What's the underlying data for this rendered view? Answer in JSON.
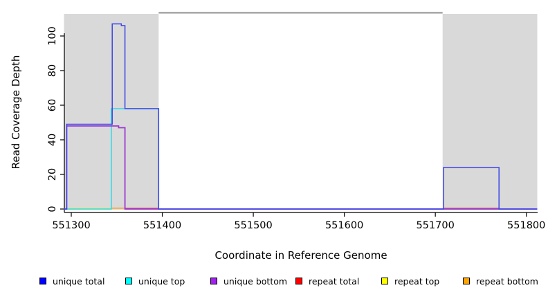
{
  "chart_data": {
    "type": "line",
    "title": "",
    "xlabel": "Coordinate in Reference Genome",
    "ylabel": "Read Coverage Depth",
    "xlim": [
      551292,
      551812
    ],
    "ylim": [
      0,
      113
    ],
    "x_ticks": [
      551300,
      551400,
      551500,
      551600,
      551700,
      551800
    ],
    "y_ticks": [
      0,
      20,
      40,
      60,
      80,
      100
    ],
    "grid": false,
    "legend_position": "bottom",
    "background_color": "#ffffff",
    "shaded_regions": [
      {
        "name": "repeat-region-left",
        "x1": 551292,
        "x2": 551396,
        "color": "#d9d9d9"
      },
      {
        "name": "repeat-region-right",
        "x1": 551708,
        "x2": 551812,
        "color": "#d9d9d9"
      }
    ],
    "top_bar": {
      "x1": 551396,
      "x2": 551708,
      "color": "#919191"
    },
    "series": [
      {
        "name": "repeat top",
        "color": "#f0f00e",
        "segments": [
          [
            [
              551295,
              0.3
            ],
            [
              551344,
              0.3
            ]
          ]
        ]
      },
      {
        "name": "repeat bottom",
        "color": "#ff9d12",
        "segments": [
          [
            [
              551344,
              0.5
            ],
            [
              551359,
              0.5
            ]
          ]
        ]
      },
      {
        "name": "repeat total",
        "color": "#e23b4e",
        "segments": [
          [
            [
              551359,
              0.4
            ],
            [
              551396,
              0.4
            ]
          ],
          [
            [
              551709,
              0.4
            ],
            [
              551770,
              0.4
            ]
          ]
        ]
      },
      {
        "name": "unique top",
        "color": "#2fd8e8",
        "segments": [
          [
            [
              551292,
              0
            ],
            [
              551344,
              0
            ],
            [
              551344,
              58
            ],
            [
              551396,
              58
            ],
            [
              551396,
              0
            ],
            [
              551812,
              0
            ]
          ]
        ]
      },
      {
        "name": "unique bottom",
        "color": "#9a3ad0",
        "segments": [
          [
            [
              551292,
              0
            ],
            [
              551295,
              0
            ],
            [
              551295,
              48
            ],
            [
              551352,
              48
            ],
            [
              551352,
              47
            ],
            [
              551359,
              47
            ],
            [
              551359,
              0
            ],
            [
              551812,
              0
            ]
          ]
        ]
      },
      {
        "name": "unique total",
        "color": "#3a45e6",
        "segments": [
          [
            [
              551292,
              0
            ],
            [
              551295,
              0
            ],
            [
              551295,
              49
            ],
            [
              551345,
              49
            ],
            [
              551345,
              107
            ],
            [
              551355,
              107
            ],
            [
              551355,
              106
            ],
            [
              551359,
              106
            ],
            [
              551359,
              58
            ],
            [
              551396,
              58
            ],
            [
              551396,
              0
            ],
            [
              551709,
              0
            ],
            [
              551709,
              24
            ],
            [
              551770,
              24
            ],
            [
              551770,
              0
            ],
            [
              551812,
              0
            ]
          ]
        ]
      }
    ],
    "legend": [
      {
        "label": "unique total",
        "color": "#0000ff"
      },
      {
        "label": "unique top",
        "color": "#00ffff"
      },
      {
        "label": "unique bottom",
        "color": "#a020f0"
      },
      {
        "label": "repeat total",
        "color": "#ff0000"
      },
      {
        "label": "repeat top",
        "color": "#ffff00"
      },
      {
        "label": "repeat bottom",
        "color": "#ffa500"
      }
    ]
  }
}
